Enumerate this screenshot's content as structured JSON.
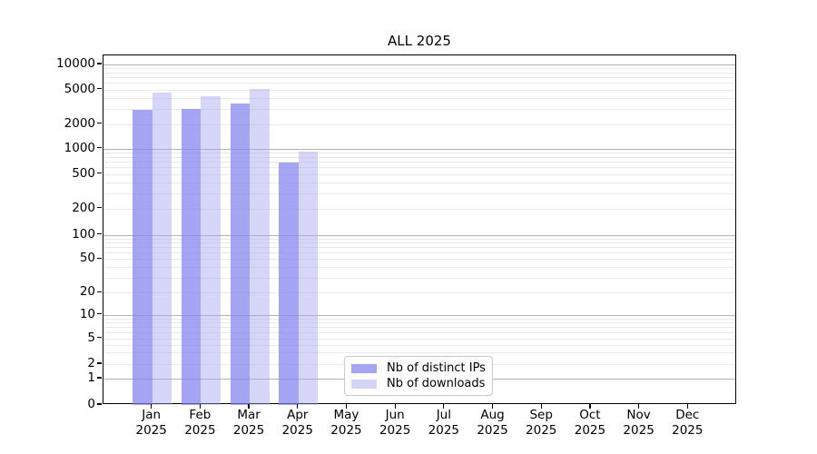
{
  "title": "ALL 2025",
  "chart_data": {
    "type": "bar",
    "title": "ALL 2025",
    "categories": [
      "Jan",
      "Feb",
      "Mar",
      "Apr",
      "May",
      "Jun",
      "Jul",
      "Aug",
      "Sep",
      "Oct",
      "Nov",
      "Dec"
    ],
    "x_year_label": "2025",
    "series": [
      {
        "name": "Nb of distinct IPs",
        "color_hex": "#a5a5f1",
        "fill_rgba": "rgba(130,130,240,0.72)",
        "values": [
          2900,
          2950,
          3450,
          690,
          null,
          null,
          null,
          null,
          null,
          null,
          null,
          null
        ]
      },
      {
        "name": "Nb of downloads",
        "color_hex": "#d6d6f9",
        "fill_rgba": "rgba(165,165,242,0.45)",
        "values": [
          4650,
          4200,
          5100,
          920,
          null,
          null,
          null,
          null,
          null,
          null,
          null,
          null
        ]
      }
    ],
    "yticks": [
      0,
      1,
      2,
      5,
      10,
      20,
      50,
      100,
      200,
      500,
      1000,
      2000,
      5000,
      10000
    ],
    "yscale": "symlog",
    "ylim": [
      0,
      10000
    ],
    "grid": "both",
    "grid_major_color": "#b2b2b2",
    "grid_minor_color": "#e9e9e9",
    "legend_position": "lower center-left",
    "legend_labels": [
      "Nb of distinct IPs",
      "Nb of downloads"
    ]
  }
}
